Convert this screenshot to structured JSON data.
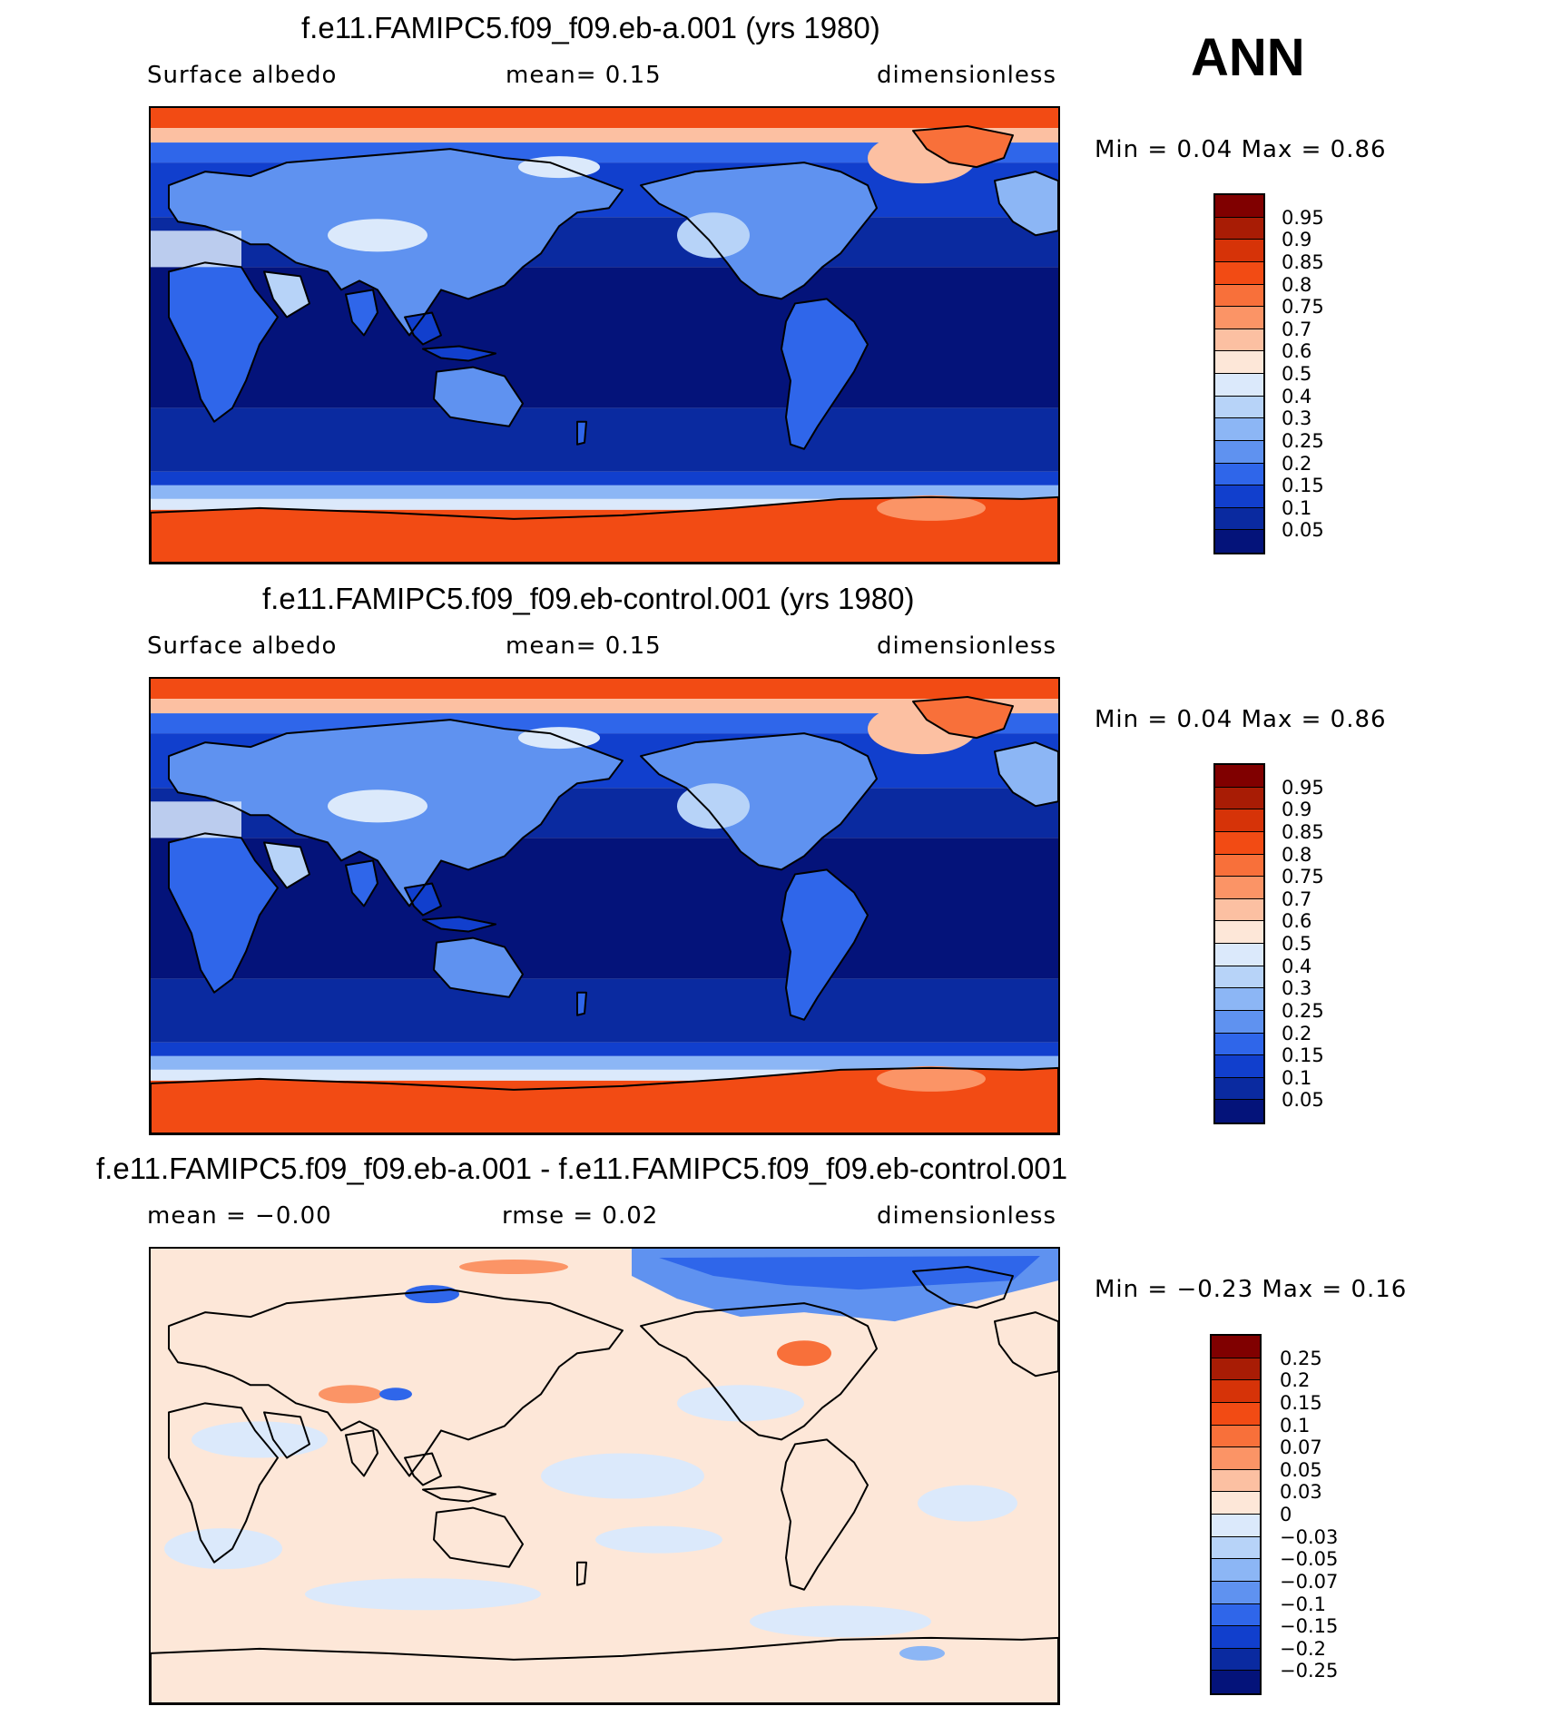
{
  "season": "ANN",
  "panels": [
    {
      "title": "f.e11.FAMIPC5.f09_f09.eb-a.001 (yrs 1980)",
      "sub_left": "Surface  albedo",
      "sub_mid": "mean=    0.15",
      "sub_right": "dimensionless",
      "minmax": "Min  =     0.04  Max  =     0.86",
      "kind": "field",
      "levels": [
        "0.95",
        "0.9",
        "0.85",
        "0.8",
        "0.75",
        "0.7",
        "0.6",
        "0.5",
        "0.4",
        "0.3",
        "0.25",
        "0.2",
        "0.15",
        "0.1",
        "0.05"
      ],
      "colors": [
        "#800000",
        "#a81c05",
        "#d63308",
        "#f24b14",
        "#f8703a",
        "#fb9466",
        "#fcc0a2",
        "#fde7d8",
        "#dbe9fb",
        "#b7d3f8",
        "#8cb6f5",
        "#5f92f0",
        "#2f66ea",
        "#113fcd",
        "#0a2aa0",
        "#04137a"
      ]
    },
    {
      "title": "f.e11.FAMIPC5.f09_f09.eb-control.001 (yrs 1980)",
      "sub_left": "Surface  albedo",
      "sub_mid": "mean=    0.15",
      "sub_right": "dimensionless",
      "minmax": "Min  =     0.04  Max  =     0.86",
      "kind": "field",
      "levels": [
        "0.95",
        "0.9",
        "0.85",
        "0.8",
        "0.75",
        "0.7",
        "0.6",
        "0.5",
        "0.4",
        "0.3",
        "0.25",
        "0.2",
        "0.15",
        "0.1",
        "0.05"
      ],
      "colors": [
        "#800000",
        "#a81c05",
        "#d63308",
        "#f24b14",
        "#f8703a",
        "#fb9466",
        "#fcc0a2",
        "#fde7d8",
        "#dbe9fb",
        "#b7d3f8",
        "#8cb6f5",
        "#5f92f0",
        "#2f66ea",
        "#113fcd",
        "#0a2aa0",
        "#04137a"
      ]
    },
    {
      "title": "f.e11.FAMIPC5.f09_f09.eb-a.001 - f.e11.FAMIPC5.f09_f09.eb-control.001",
      "sub_left": "mean  =    −0.00",
      "sub_mid": "rmse  =     0.02",
      "sub_right": "dimensionless",
      "minmax": "Min  =    −0.23  Max  =     0.16",
      "kind": "diff",
      "levels": [
        "0.25",
        "0.2",
        "0.15",
        "0.1",
        "0.07",
        "0.05",
        "0.03",
        "0",
        "−0.03",
        "−0.05",
        "−0.07",
        "−0.1",
        "−0.15",
        "−0.2",
        "−0.25"
      ],
      "colors": [
        "#800000",
        "#a81c05",
        "#d63308",
        "#f24b14",
        "#f8703a",
        "#fb9466",
        "#fcc0a2",
        "#fde7d8",
        "#dbe9fb",
        "#b7d3f8",
        "#8cb6f5",
        "#5f92f0",
        "#2f66ea",
        "#113fcd",
        "#0a2aa0",
        "#04137a"
      ]
    }
  ]
}
